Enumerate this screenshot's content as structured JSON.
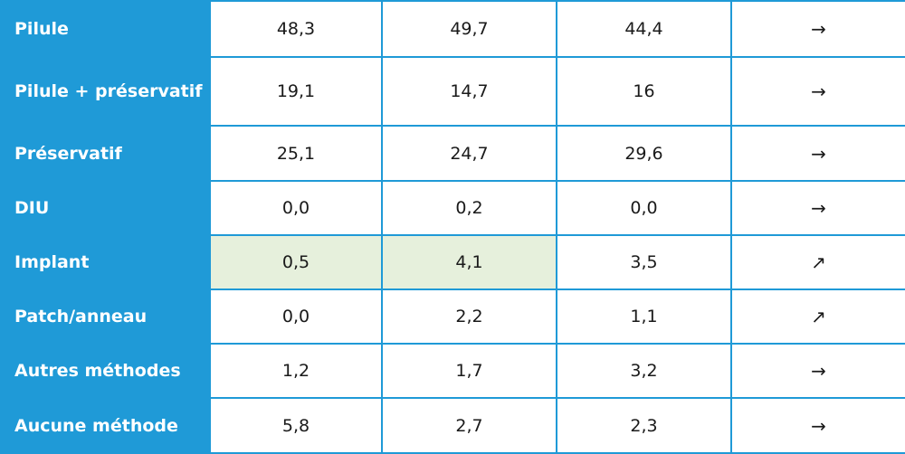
{
  "table": {
    "rows": [
      {
        "label": "Pilule",
        "v1": "48,3",
        "v2": "49,7",
        "v3": "44,4",
        "trend": "→",
        "trend_icon": "arrow-right-icon"
      },
      {
        "label": "Pilule + préservatif",
        "v1": "19,1",
        "v2": "14,7",
        "v3": "16",
        "trend": "→",
        "trend_icon": "arrow-right-icon"
      },
      {
        "label": "Préservatif",
        "v1": "25,1",
        "v2": "24,7",
        "v3": "29,6",
        "trend": "→",
        "trend_icon": "arrow-right-icon"
      },
      {
        "label": "DIU",
        "v1": "0,0",
        "v2": "0,2",
        "v3": "0,0",
        "trend": "→",
        "trend_icon": "arrow-right-icon"
      },
      {
        "label": "Implant",
        "v1": "0,5",
        "v2": "4,1",
        "v3": "3,5",
        "trend": "↗",
        "trend_icon": "arrow-up-right-icon"
      },
      {
        "label": "Patch/anneau",
        "v1": "0,0",
        "v2": "2,2",
        "v3": "1,1",
        "trend": "↗",
        "trend_icon": "arrow-up-right-icon"
      },
      {
        "label": "Autres méthodes",
        "v1": "1,2",
        "v2": "1,7",
        "v3": "3,2",
        "trend": "→",
        "trend_icon": "arrow-right-icon"
      },
      {
        "label": "Aucune méthode",
        "v1": "5,8",
        "v2": "2,7",
        "v3": "2,3",
        "trend": "→",
        "trend_icon": "arrow-right-icon"
      }
    ]
  },
  "colors": {
    "header_blue": "#1f9ad7",
    "highlight_green": "#e6f0dc"
  }
}
